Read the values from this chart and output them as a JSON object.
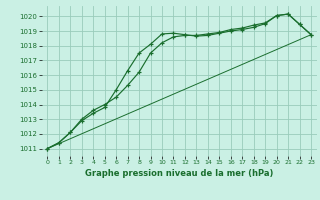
{
  "title": "Graphe pression niveau de la mer (hPa)",
  "background_color": "#caf0e4",
  "grid_color": "#99ccbb",
  "line_color": "#1a6e2e",
  "xlim": [
    -0.5,
    23.5
  ],
  "ylim": [
    1010.5,
    1020.7
  ],
  "yticks": [
    1011,
    1012,
    1013,
    1014,
    1015,
    1016,
    1017,
    1018,
    1019,
    1020
  ],
  "xticks": [
    0,
    1,
    2,
    3,
    4,
    5,
    6,
    7,
    8,
    9,
    10,
    11,
    12,
    13,
    14,
    15,
    16,
    17,
    18,
    19,
    20,
    21,
    22,
    23
  ],
  "line1_x": [
    0,
    1,
    2,
    3,
    4,
    5,
    6,
    7,
    8,
    9,
    10,
    11,
    12,
    13,
    14,
    15,
    16,
    17,
    18,
    19,
    20,
    21,
    22,
    23
  ],
  "line1_y": [
    1011.0,
    1011.4,
    1012.1,
    1012.9,
    1013.4,
    1013.8,
    1015.0,
    1016.3,
    1017.5,
    1018.1,
    1018.8,
    1018.85,
    1018.75,
    1018.65,
    1018.7,
    1018.85,
    1019.0,
    1019.1,
    1019.25,
    1019.5,
    1020.05,
    1020.15,
    1019.45,
    1018.75
  ],
  "line2_x": [
    0,
    1,
    2,
    3,
    4,
    5,
    6,
    7,
    8,
    9,
    10,
    11,
    12,
    13,
    14,
    15,
    16,
    17,
    18,
    19,
    20,
    21,
    22,
    23
  ],
  "line2_y": [
    1011.0,
    1011.4,
    1012.1,
    1013.0,
    1013.6,
    1014.0,
    1014.5,
    1015.3,
    1016.2,
    1017.5,
    1018.2,
    1018.6,
    1018.7,
    1018.7,
    1018.8,
    1018.9,
    1019.1,
    1019.2,
    1019.4,
    1019.55,
    1020.05,
    1020.15,
    1019.45,
    1018.75
  ],
  "line3_x": [
    0,
    23
  ],
  "line3_y": [
    1011.0,
    1018.75
  ]
}
